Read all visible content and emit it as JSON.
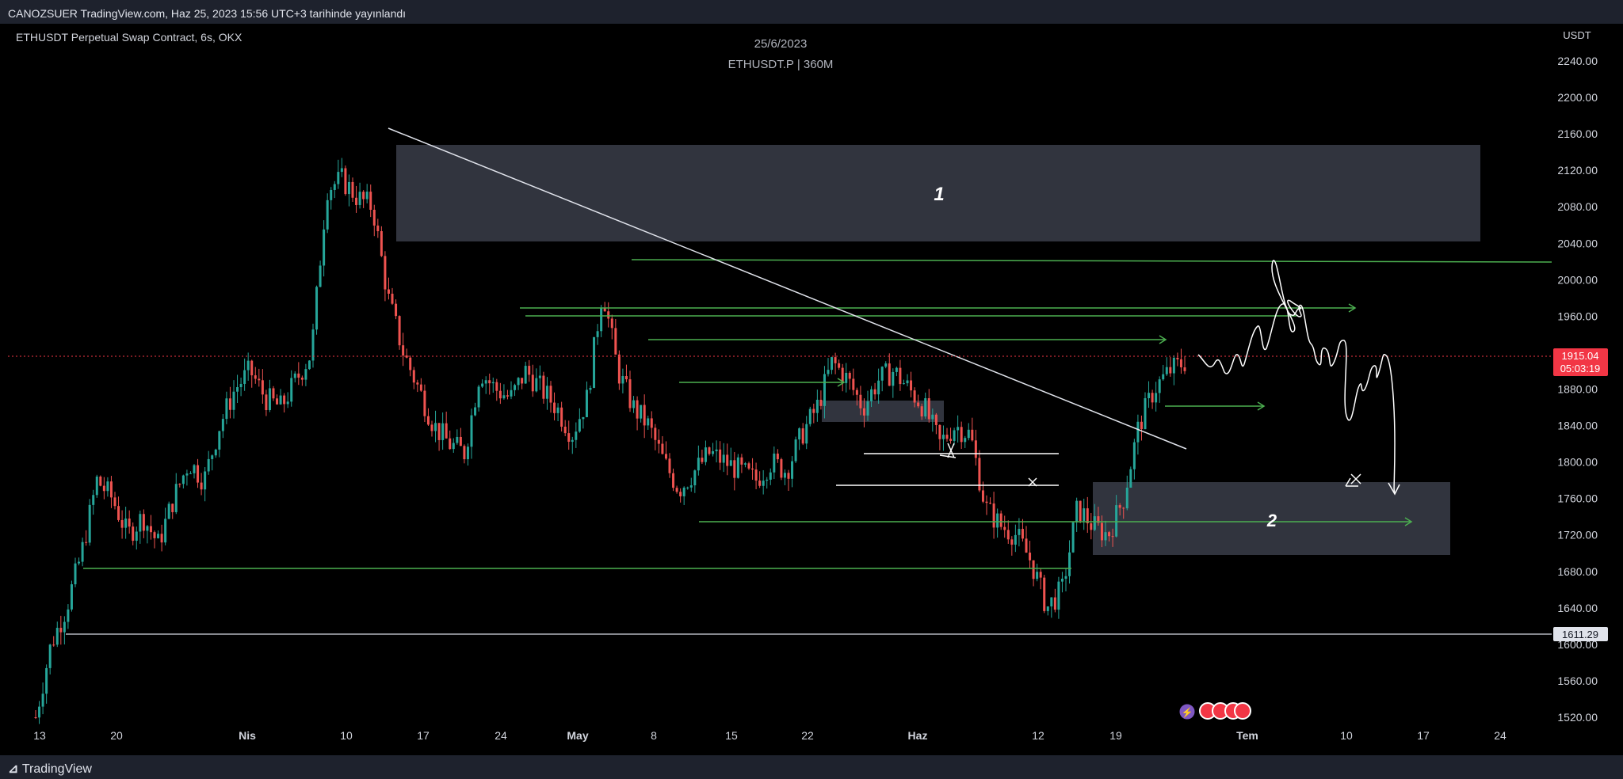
{
  "header": {
    "text": "CANOZSUER TradingView.com, Haz 25, 2023 15:56 UTC+3 tarihinde yayınlandı"
  },
  "chart": {
    "symbol_info": "ETHUSDT Perpetual Swap Contract, 6s, OKX",
    "date": "25/6/2023",
    "symbol_interval": "ETHUSDT.P | 360M",
    "currency": "USDT",
    "price_badge": {
      "price": "1915.04",
      "countdown": "05:03:19"
    },
    "level_badge": "1611.29",
    "zone_labels": [
      "1",
      "2"
    ]
  },
  "footer": {
    "brand": "TradingView"
  },
  "chart_data": {
    "type": "candlestick",
    "ylim": [
      1500,
      2265
    ],
    "y_ticks": [
      "1520.00",
      "1560.00",
      "1600.00",
      "1640.00",
      "1680.00",
      "1720.00",
      "1760.00",
      "1800.00",
      "1840.00",
      "1880.00",
      "1920.00",
      "1960.00",
      "2000.00",
      "2040.00",
      "2080.00",
      "2120.00",
      "2160.00",
      "2200.00",
      "2240.00"
    ],
    "x_ticks": [
      "13",
      "20",
      "Nis",
      "10",
      "17",
      "24",
      "May",
      "8",
      "15",
      "22",
      "Haz",
      "12",
      "19",
      "Tem",
      "10",
      "17",
      "24"
    ],
    "series_close_path": [
      1520,
      1600,
      1640,
      1700,
      1780,
      1760,
      1720,
      1740,
      1710,
      1760,
      1800,
      1780,
      1840,
      1880,
      1900,
      1870,
      1860,
      1890,
      1920,
      2100,
      2110,
      2090,
      2080,
      1980,
      1920,
      1880,
      1840,
      1820,
      1810,
      1900,
      1880,
      1870,
      1900,
      1880,
      1860,
      1830,
      1870,
      1990,
      1900,
      1860,
      1840,
      1800,
      1770,
      1790,
      1810,
      1800,
      1790,
      1780,
      1800,
      1790,
      1830,
      1860,
      1910,
      1890,
      1860,
      1890,
      1900,
      1880,
      1860,
      1820,
      1840,
      1830,
      1750,
      1730,
      1720,
      1690,
      1640,
      1660,
      1750,
      1730,
      1720,
      1760,
      1840,
      1880,
      1900,
      1910
    ]
  },
  "colors": {
    "bg": "#000000",
    "up": "#26a69a",
    "down": "#ef5350",
    "green_line": "#4caf50",
    "price_red": "#f23645",
    "zone": "#363a45"
  }
}
